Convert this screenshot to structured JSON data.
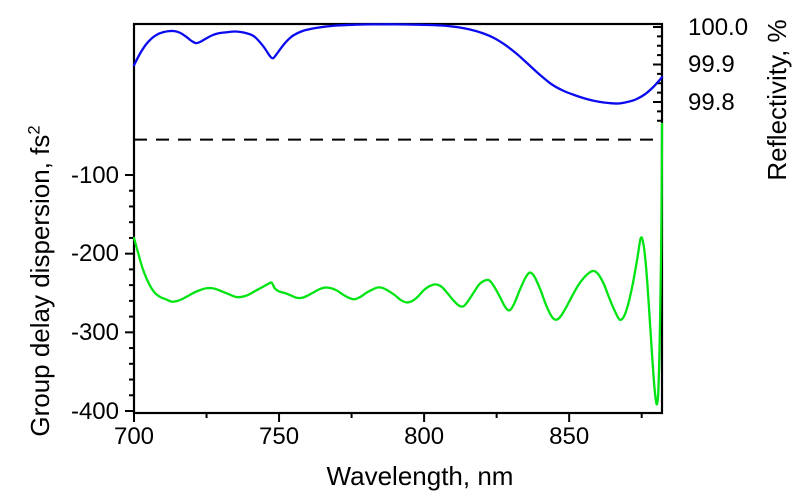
{
  "figure": {
    "background": "#ffffff",
    "frame_color": "#000000"
  },
  "chart_data": {
    "type": "line",
    "title": "",
    "grid": false,
    "legend": {
      "visible": false
    },
    "x_axis": {
      "label": "Wavelength, nm",
      "range": [
        700,
        882
      ],
      "major_ticks": [
        700,
        750,
        800,
        850
      ],
      "minor_ticks": [
        725,
        775,
        825,
        875
      ],
      "tick_labels": [
        "700",
        "750",
        "800",
        "850"
      ]
    },
    "y_left": {
      "label": "Group delay dispersion, fs",
      "label_superscript": "2",
      "major_ticks": [
        -100,
        -200,
        -300,
        -400
      ],
      "tick_labels": [
        "-100",
        "-200",
        "-300",
        "-400"
      ],
      "minor_tick_step": 20,
      "ticked_range": [
        -400,
        -100
      ],
      "displayed_range": [
        -402,
        92
      ]
    },
    "y_right": {
      "label": "Reflectivity, %",
      "major_ticks": [
        100.0,
        99.9,
        99.8
      ],
      "tick_labels": [
        "100.0",
        "99.9",
        "99.8"
      ],
      "minor_tick_step": 0.025,
      "ticked_range": [
        99.75,
        100.0
      ]
    },
    "reference_line": {
      "style": "dashed",
      "color": "#000000",
      "axis": "left",
      "value": -55
    },
    "series": [
      {
        "name": "reflectivity",
        "axis": "right",
        "color": "#0b0bf0",
        "width": 2.3,
        "points": [
          [
            700,
            99.898
          ],
          [
            702,
            99.928
          ],
          [
            704,
            99.952
          ],
          [
            706,
            99.969
          ],
          [
            708,
            99.98
          ],
          [
            710,
            99.986
          ],
          [
            712,
            99.989
          ],
          [
            714,
            99.989
          ],
          [
            716,
            99.984
          ],
          [
            718,
            99.974
          ],
          [
            720,
            99.962
          ],
          [
            721.5,
            99.957
          ],
          [
            723,
            99.961
          ],
          [
            725,
            99.97
          ],
          [
            727,
            99.978
          ],
          [
            729,
            99.983
          ],
          [
            732,
            99.986
          ],
          [
            735,
            99.988
          ],
          [
            738,
            99.985
          ],
          [
            741,
            99.977
          ],
          [
            743,
            99.963
          ],
          [
            745,
            99.944
          ],
          [
            747,
            99.921
          ],
          [
            748,
            99.917
          ],
          [
            749,
            99.926
          ],
          [
            751,
            99.947
          ],
          [
            753,
            99.965
          ],
          [
            755,
            99.978
          ],
          [
            758,
            99.989
          ],
          [
            761,
            99.995
          ],
          [
            765,
            100.0
          ],
          [
            770,
            100.004
          ],
          [
            776,
            100.006
          ],
          [
            782,
            100.007
          ],
          [
            790,
            100.007
          ],
          [
            798,
            100.006
          ],
          [
            806,
            100.004
          ],
          [
            812,
            99.999
          ],
          [
            816,
            99.993
          ],
          [
            820,
            99.984
          ],
          [
            824,
            99.971
          ],
          [
            828,
            99.952
          ],
          [
            832,
            99.928
          ],
          [
            836,
            99.9
          ],
          [
            840,
            99.872
          ],
          [
            844,
            99.847
          ],
          [
            848,
            99.83
          ],
          [
            852,
            99.818
          ],
          [
            856,
            99.808
          ],
          [
            860,
            99.801
          ],
          [
            864,
            99.797
          ],
          [
            867,
            99.796
          ],
          [
            870,
            99.8
          ],
          [
            873,
            99.807
          ],
          [
            876,
            99.82
          ],
          [
            879,
            99.84
          ],
          [
            882,
            99.866
          ]
        ]
      },
      {
        "name": "group-delay-dispersion",
        "axis": "left",
        "color": "#00e412",
        "width": 2.3,
        "points": [
          [
            700,
            -180
          ],
          [
            701.5,
            -200
          ],
          [
            703,
            -219
          ],
          [
            705,
            -237
          ],
          [
            707,
            -249
          ],
          [
            709,
            -255
          ],
          [
            711,
            -258
          ],
          [
            713,
            -261
          ],
          [
            715,
            -260
          ],
          [
            717,
            -257
          ],
          [
            719,
            -253
          ],
          [
            721,
            -249
          ],
          [
            723,
            -246
          ],
          [
            725,
            -244
          ],
          [
            727,
            -244
          ],
          [
            729,
            -246
          ],
          [
            731,
            -249
          ],
          [
            733,
            -252
          ],
          [
            735,
            -255
          ],
          [
            737,
            -255
          ],
          [
            739,
            -253
          ],
          [
            741,
            -249
          ],
          [
            743,
            -245
          ],
          [
            745,
            -241
          ],
          [
            746.5,
            -238
          ],
          [
            747.5,
            -237
          ],
          [
            748.5,
            -244
          ],
          [
            750,
            -248
          ],
          [
            752,
            -250
          ],
          [
            754,
            -253
          ],
          [
            756,
            -256
          ],
          [
            758,
            -256
          ],
          [
            760,
            -253
          ],
          [
            762,
            -249
          ],
          [
            764,
            -245
          ],
          [
            766,
            -243
          ],
          [
            768,
            -244
          ],
          [
            770,
            -247
          ],
          [
            772,
            -252
          ],
          [
            774,
            -256
          ],
          [
            776,
            -258
          ],
          [
            778,
            -255
          ],
          [
            780,
            -250
          ],
          [
            782,
            -246
          ],
          [
            784,
            -243
          ],
          [
            786,
            -244
          ],
          [
            788,
            -248
          ],
          [
            790,
            -253
          ],
          [
            792,
            -259
          ],
          [
            794,
            -262
          ],
          [
            796,
            -260
          ],
          [
            798,
            -254
          ],
          [
            800,
            -246
          ],
          [
            802,
            -241
          ],
          [
            804,
            -239
          ],
          [
            806,
            -242
          ],
          [
            808,
            -250
          ],
          [
            810,
            -259
          ],
          [
            812,
            -266
          ],
          [
            813.5,
            -267
          ],
          [
            815,
            -261
          ],
          [
            817,
            -250
          ],
          [
            819,
            -239
          ],
          [
            821,
            -234
          ],
          [
            822.5,
            -234
          ],
          [
            824,
            -241
          ],
          [
            826,
            -254
          ],
          [
            828,
            -268
          ],
          [
            829.5,
            -272
          ],
          [
            831,
            -264
          ],
          [
            833,
            -246
          ],
          [
            835,
            -230
          ],
          [
            836.5,
            -224
          ],
          [
            838,
            -229
          ],
          [
            840,
            -245
          ],
          [
            842,
            -265
          ],
          [
            844,
            -280
          ],
          [
            845.5,
            -284
          ],
          [
            847,
            -280
          ],
          [
            849,
            -268
          ],
          [
            851,
            -254
          ],
          [
            853,
            -241
          ],
          [
            855,
            -231
          ],
          [
            857,
            -224
          ],
          [
            858.5,
            -222
          ],
          [
            860,
            -226
          ],
          [
            862,
            -239
          ],
          [
            864,
            -258
          ],
          [
            866,
            -275
          ],
          [
            867.5,
            -284
          ],
          [
            869,
            -279
          ],
          [
            870.5,
            -262
          ],
          [
            872,
            -237
          ],
          [
            873.5,
            -206
          ],
          [
            874.6,
            -181
          ],
          [
            875.4,
            -184
          ],
          [
            876.2,
            -205
          ],
          [
            877,
            -240
          ],
          [
            877.8,
            -285
          ],
          [
            878.6,
            -330
          ],
          [
            879.3,
            -366
          ],
          [
            879.9,
            -387
          ],
          [
            880.3,
            -391
          ],
          [
            880.7,
            -377
          ],
          [
            881.1,
            -330
          ],
          [
            881.4,
            -270
          ],
          [
            881.7,
            -195
          ],
          [
            881.9,
            -110
          ],
          [
            882,
            -35
          ]
        ]
      }
    ]
  }
}
